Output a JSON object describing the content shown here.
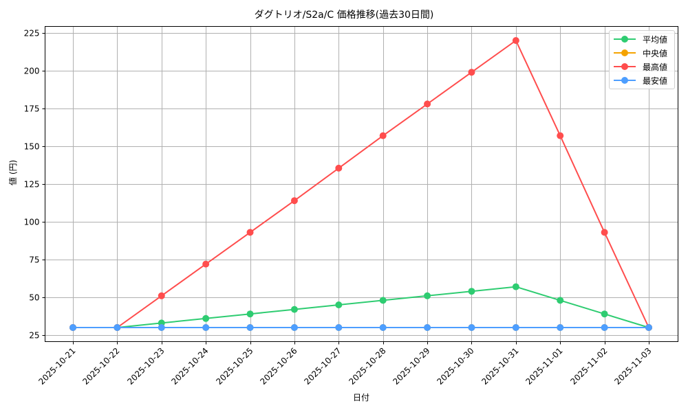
{
  "chart_data": {
    "type": "line",
    "title": "ダグトリオ/S2a/C 価格推移(過去30日間)",
    "xlabel": "日付",
    "ylabel": "値 (円)",
    "ylim": [
      20,
      235
    ],
    "yticks": [
      25,
      50,
      75,
      100,
      125,
      150,
      175,
      200,
      225
    ],
    "grid": true,
    "legend_position": "upper right",
    "categories": [
      "2025-10-21",
      "2025-10-22",
      "2025-10-23",
      "2025-10-24",
      "2025-10-25",
      "2025-10-26",
      "2025-10-27",
      "2025-10-28",
      "2025-10-29",
      "2025-10-30",
      "2025-10-31",
      "2025-11-01",
      "2025-11-02",
      "2025-11-03"
    ],
    "series": [
      {
        "name": "平均値",
        "color": "#2ecc71",
        "values": [
          30,
          30,
          33,
          36,
          39,
          42,
          45,
          48,
          51,
          54,
          57,
          48,
          39,
          30
        ]
      },
      {
        "name": "中央値",
        "color": "#f5a300",
        "values": [
          30,
          30,
          30,
          30,
          30,
          30,
          30,
          30,
          30,
          30,
          30,
          30,
          30,
          30
        ]
      },
      {
        "name": "最高値",
        "color": "#ff4d4d",
        "values": [
          30,
          30,
          51,
          72,
          93,
          114,
          135.5,
          157,
          178,
          199,
          220,
          157,
          93,
          30
        ]
      },
      {
        "name": "最安値",
        "color": "#4d9eff",
        "values": [
          30,
          30,
          30,
          30,
          30,
          30,
          30,
          30,
          30,
          30,
          30,
          30,
          30,
          30
        ]
      }
    ]
  },
  "legend": {
    "items": [
      {
        "label": "平均値"
      },
      {
        "label": " 中央値"
      },
      {
        "label": "最高値"
      },
      {
        "label": "最安値"
      }
    ]
  }
}
